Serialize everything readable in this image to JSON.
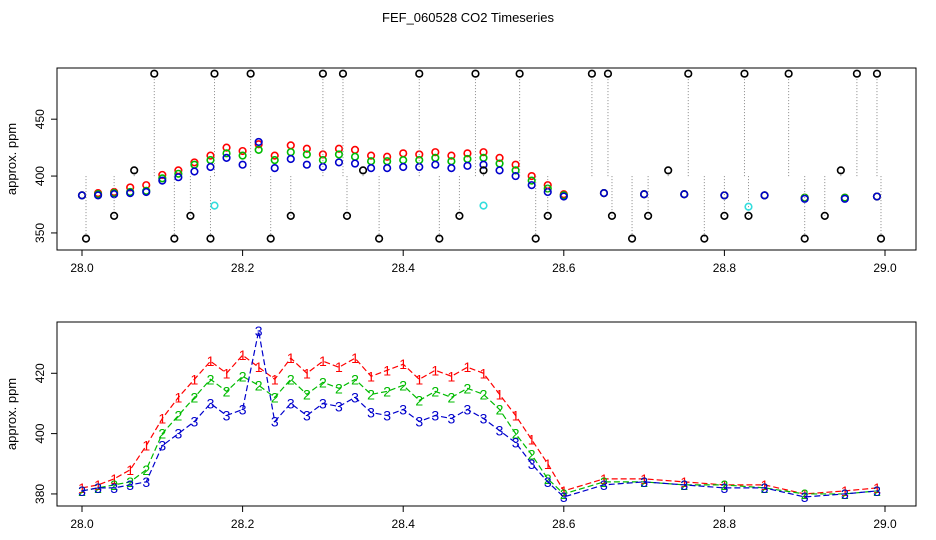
{
  "title": "FEF_060528  CO2 Timeseries",
  "colors": {
    "series1": "#ff0000",
    "series2": "#00bb00",
    "series3": "#0000cc",
    "cyan": "#33dddd",
    "black": "#000000",
    "spike": "#888888"
  },
  "chart_data": [
    {
      "type": "scatter",
      "ylabel": "approx. ppm",
      "xlim": [
        28.0,
        29.0
      ],
      "ylim": [
        335,
        495
      ],
      "xticks": [
        "28.0",
        "28.2",
        "28.4",
        "28.6",
        "28.8",
        "29.0"
      ],
      "yticks": [
        "350",
        "400",
        "450"
      ],
      "series": [
        {
          "symbol": "o",
          "color": "#ff0000",
          "x": [
            28.0,
            28.02,
            28.04,
            28.06,
            28.08,
            28.1,
            28.12,
            28.14,
            28.16,
            28.18,
            28.2,
            28.22,
            28.24,
            28.26,
            28.28,
            28.3,
            28.32,
            28.34,
            28.36,
            28.38,
            28.4,
            28.42,
            28.44,
            28.46,
            28.48,
            28.5,
            28.52,
            28.54,
            28.56,
            28.58,
            28.6,
            28.65,
            28.7,
            28.75,
            28.8,
            28.85,
            28.9,
            28.95,
            28.99
          ],
          "y": [
            383,
            385,
            386,
            390,
            392,
            401,
            405,
            412,
            418,
            425,
            422,
            428,
            418,
            427,
            424,
            419,
            424,
            423,
            418,
            417,
            420,
            419,
            421,
            418,
            420,
            421,
            416,
            410,
            400,
            392,
            384,
            385,
            384,
            384,
            383,
            383,
            381,
            381,
            382
          ]
        },
        {
          "symbol": "o",
          "color": "#00bb00",
          "x": [
            28.0,
            28.02,
            28.04,
            28.06,
            28.08,
            28.1,
            28.12,
            28.14,
            28.16,
            28.18,
            28.2,
            28.22,
            28.24,
            28.26,
            28.28,
            28.3,
            28.32,
            28.34,
            28.36,
            28.38,
            28.4,
            28.42,
            28.44,
            28.46,
            28.48,
            28.5,
            28.52,
            28.54,
            28.56,
            28.58,
            28.6,
            28.65,
            28.7,
            28.75,
            28.8,
            28.85,
            28.9,
            28.95,
            28.99
          ],
          "y": [
            383,
            384,
            385,
            386,
            387,
            398,
            402,
            410,
            414,
            420,
            418,
            423,
            414,
            421,
            419,
            414,
            419,
            417,
            413,
            413,
            414,
            414,
            416,
            413,
            415,
            416,
            411,
            405,
            396,
            389,
            383,
            385,
            384,
            384,
            383,
            383,
            381,
            381,
            382
          ]
        },
        {
          "symbol": "o",
          "color": "#0000cc",
          "x": [
            28.0,
            28.02,
            28.04,
            28.06,
            28.08,
            28.1,
            28.12,
            28.14,
            28.16,
            28.18,
            28.2,
            28.22,
            28.24,
            28.26,
            28.28,
            28.3,
            28.32,
            28.34,
            28.36,
            28.38,
            28.4,
            28.42,
            28.44,
            28.46,
            28.48,
            28.5,
            28.52,
            28.54,
            28.56,
            28.58,
            28.6,
            28.65,
            28.7,
            28.75,
            28.8,
            28.85,
            28.9,
            28.95,
            28.99
          ],
          "y": [
            383,
            383,
            384,
            385,
            386,
            396,
            399,
            404,
            408,
            416,
            410,
            430,
            407,
            415,
            410,
            408,
            412,
            411,
            407,
            407,
            408,
            408,
            410,
            407,
            409,
            410,
            405,
            400,
            392,
            386,
            382,
            385,
            384,
            384,
            383,
            383,
            380,
            380,
            382
          ]
        },
        {
          "symbol": "o",
          "color": "#000000",
          "note_points": "outlier",
          "x": [
            28.005,
            28.04,
            28.065,
            28.09,
            28.115,
            28.135,
            28.16,
            28.165,
            28.21,
            28.235,
            28.26,
            28.3,
            28.325,
            28.33,
            28.35,
            28.37,
            28.42,
            28.445,
            28.47,
            28.49,
            28.5,
            28.545,
            28.565,
            28.58,
            28.635,
            28.655,
            28.66,
            28.685,
            28.705,
            28.73,
            28.755,
            28.775,
            28.8,
            28.825,
            28.83,
            28.88,
            28.9,
            28.925,
            28.945,
            28.965,
            28.99,
            28.995
          ],
          "y": [
            345,
            365,
            405,
            490,
            345,
            365,
            345,
            490,
            490,
            345,
            365,
            490,
            490,
            365,
            405,
            345,
            490,
            345,
            365,
            490,
            405,
            490,
            345,
            365,
            490,
            490,
            365,
            345,
            365,
            405,
            490,
            345,
            365,
            490,
            365,
            490,
            345,
            365,
            405,
            490,
            490,
            345
          ]
        },
        {
          "symbol": "o",
          "color": "#33dddd",
          "x": [
            28.165,
            28.5,
            28.83
          ],
          "y": [
            374,
            374,
            373
          ]
        }
      ]
    },
    {
      "type": "line",
      "ylabel": "approx. ppm",
      "xlim": [
        28.0,
        29.0
      ],
      "ylim": [
        376,
        437
      ],
      "xticks": [
        "28.0",
        "28.2",
        "28.4",
        "28.6",
        "28.8",
        "29.0"
      ],
      "yticks": [
        "380",
        "400",
        "420"
      ],
      "series": [
        {
          "symbol": "1",
          "color": "#ff0000",
          "x": [
            28.0,
            28.02,
            28.04,
            28.06,
            28.08,
            28.1,
            28.12,
            28.14,
            28.16,
            28.18,
            28.2,
            28.22,
            28.24,
            28.26,
            28.28,
            28.3,
            28.32,
            28.34,
            28.36,
            28.38,
            28.4,
            28.42,
            28.44,
            28.46,
            28.48,
            28.5,
            28.52,
            28.54,
            28.56,
            28.58,
            28.6,
            28.65,
            28.7,
            28.75,
            28.8,
            28.85,
            28.9,
            28.95,
            28.99
          ],
          "y": [
            382,
            383,
            385,
            388,
            396,
            405,
            412,
            418,
            424,
            420,
            426,
            422,
            418,
            425,
            420,
            424,
            422,
            425,
            419,
            421,
            423,
            418,
            421,
            419,
            422,
            420,
            413,
            406,
            398,
            390,
            381,
            385,
            385,
            384,
            383,
            383,
            380,
            381,
            382
          ]
        },
        {
          "symbol": "2",
          "color": "#00bb00",
          "x": [
            28.0,
            28.02,
            28.04,
            28.06,
            28.08,
            28.1,
            28.12,
            28.14,
            28.16,
            28.18,
            28.2,
            28.22,
            28.24,
            28.26,
            28.28,
            28.3,
            28.32,
            28.34,
            28.36,
            28.38,
            28.4,
            28.42,
            28.44,
            28.46,
            28.48,
            28.5,
            28.52,
            28.54,
            28.56,
            28.58,
            28.6,
            28.65,
            28.7,
            28.75,
            28.8,
            28.85,
            28.9,
            28.95,
            28.99
          ],
          "y": [
            381,
            382,
            383,
            384,
            388,
            400,
            406,
            412,
            418,
            414,
            419,
            416,
            412,
            418,
            413,
            417,
            415,
            418,
            413,
            414,
            416,
            411,
            414,
            412,
            415,
            413,
            408,
            400,
            393,
            385,
            380,
            384,
            384,
            383,
            383,
            382,
            380,
            380,
            381
          ]
        },
        {
          "symbol": "3",
          "color": "#0000cc",
          "x": [
            28.0,
            28.02,
            28.04,
            28.06,
            28.08,
            28.1,
            28.12,
            28.14,
            28.16,
            28.18,
            28.2,
            28.22,
            28.24,
            28.26,
            28.28,
            28.3,
            28.32,
            28.34,
            28.36,
            28.38,
            28.4,
            28.42,
            28.44,
            28.46,
            28.48,
            28.5,
            28.52,
            28.54,
            28.56,
            28.58,
            28.6,
            28.65,
            28.7,
            28.75,
            28.8,
            28.85,
            28.9,
            28.95,
            28.99
          ],
          "y": [
            381,
            382,
            382,
            383,
            384,
            396,
            400,
            404,
            410,
            406,
            408,
            434,
            404,
            410,
            406,
            410,
            409,
            412,
            407,
            406,
            408,
            404,
            406,
            405,
            408,
            405,
            401,
            397,
            390,
            384,
            379,
            383,
            384,
            383,
            382,
            382,
            379,
            380,
            381
          ]
        }
      ]
    }
  ]
}
